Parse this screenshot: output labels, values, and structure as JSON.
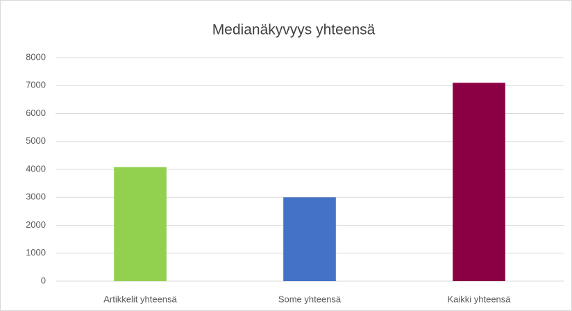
{
  "chart_data": {
    "type": "bar",
    "title": "Medianäkyvyys yhteensä",
    "categories": [
      "Artikkelit yhteensä",
      "Some yhteensä",
      "Kaikki yhteensä"
    ],
    "values": [
      4080,
      3000,
      7100
    ],
    "colors": [
      "#92d050",
      "#4472c4",
      "#8b0045"
    ],
    "ylim": [
      0,
      8000
    ],
    "yticks": [
      0,
      1000,
      2000,
      3000,
      4000,
      5000,
      6000,
      7000,
      8000
    ],
    "grid": true
  }
}
